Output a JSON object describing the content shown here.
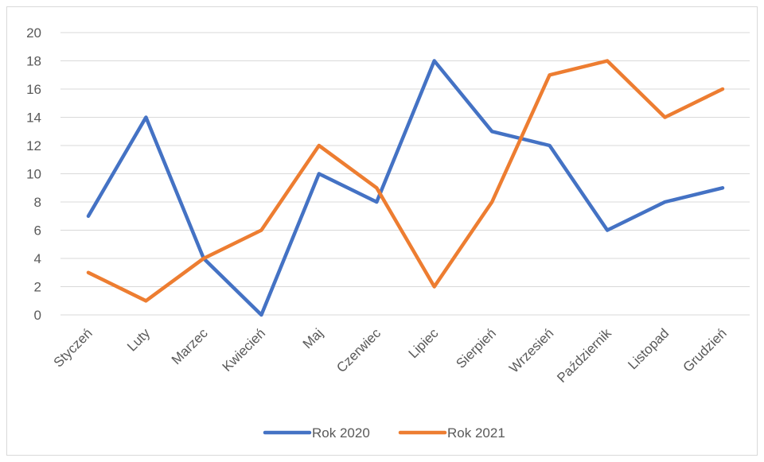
{
  "chart_data": {
    "type": "line",
    "title": "",
    "xlabel": "",
    "ylabel": "",
    "categories": [
      "Styczeń",
      "Luty",
      "Marzec",
      "Kwiecień",
      "Maj",
      "Czerwiec",
      "Lipiec",
      "Sierpień",
      "Wrzesień",
      "Październik",
      "Listopad",
      "Grudzień"
    ],
    "series": [
      {
        "name": "Rok 2020",
        "color": "#4472C4",
        "values": [
          7,
          14,
          4,
          0,
          10,
          8,
          18,
          13,
          12,
          6,
          8,
          9
        ]
      },
      {
        "name": "Rok 2021",
        "color": "#ED7D31",
        "values": [
          3,
          1,
          4,
          6,
          12,
          9,
          2,
          8,
          17,
          18,
          14,
          16
        ]
      }
    ],
    "ylim": [
      0,
      20
    ],
    "yticks": [
      0,
      2,
      4,
      6,
      8,
      10,
      12,
      14,
      16,
      18,
      20
    ],
    "grid": true,
    "legend_position": "bottom"
  },
  "colors": {
    "grid": "#d9d9d9",
    "text": "#595959"
  }
}
